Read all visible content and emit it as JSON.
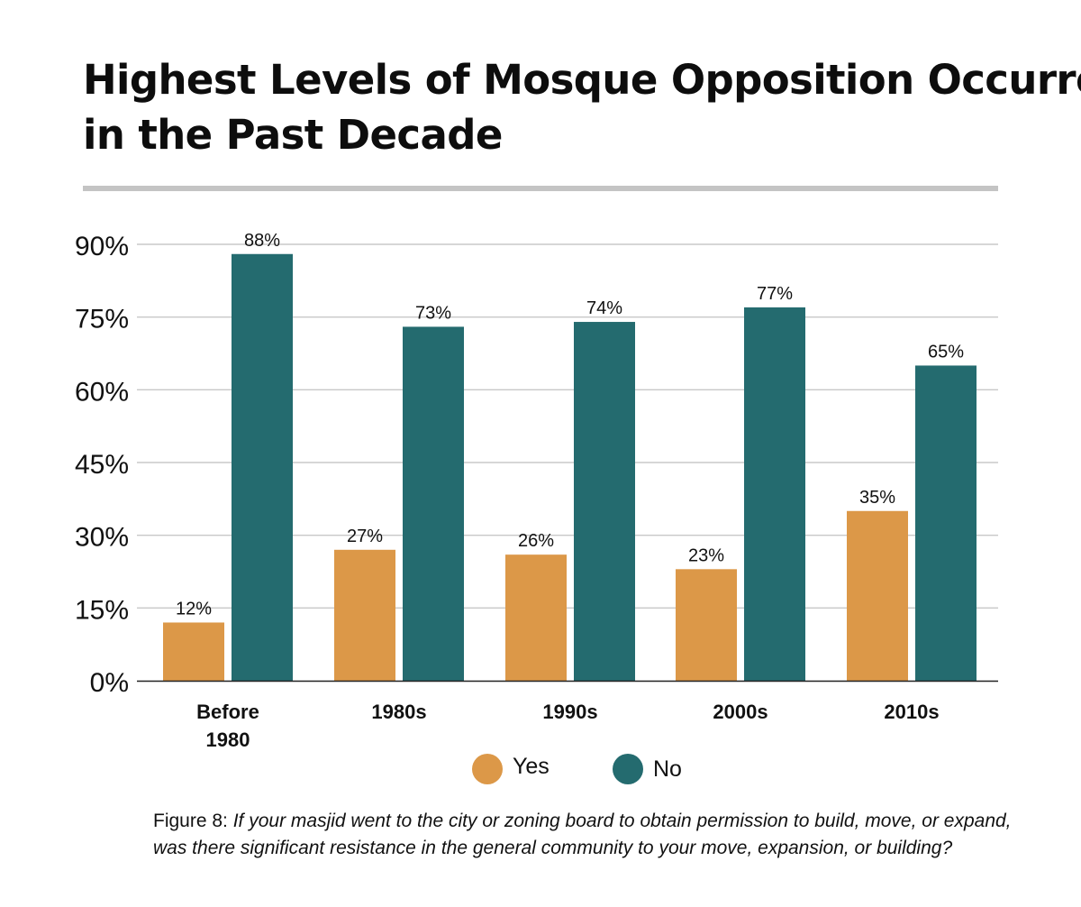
{
  "chart_data": {
    "type": "bar",
    "title": "Highest Levels of Mosque Opposition Occurred in the Past Decade",
    "title_lines": [
      "Highest Levels of Mosque Opposition Occurred",
      "in the Past Decade"
    ],
    "categories": [
      "Before 1980",
      "1980s",
      "1990s",
      "2000s",
      "2010s"
    ],
    "category_lines": [
      [
        "Before",
        "1980"
      ],
      [
        "1980s"
      ],
      [
        "1990s"
      ],
      [
        "2000s"
      ],
      [
        "2010s"
      ]
    ],
    "series": [
      {
        "name": "Yes",
        "color": "#DC9848",
        "values": [
          12,
          27,
          26,
          23,
          35
        ],
        "labels": [
          "12%",
          "27%",
          "26%",
          "23%",
          "35%"
        ]
      },
      {
        "name": "No",
        "color": "#246B6F",
        "values": [
          88,
          73,
          74,
          77,
          65
        ],
        "labels": [
          "88%",
          "73%",
          "74%",
          "77%",
          "65%"
        ]
      }
    ],
    "ylim": [
      0,
      90
    ],
    "yticks": [
      0,
      15,
      30,
      45,
      60,
      75,
      90
    ],
    "ytick_labels": [
      "0%",
      "15%",
      "30%",
      "45%",
      "60%",
      "75%",
      "90%"
    ],
    "xlabel": "",
    "ylabel": "",
    "grid": true,
    "legend_position": "bottom-center"
  },
  "caption": {
    "label": "Figure 8:",
    "text": "If your masjid went to the city or zoning board to obtain permission to build, move, or expand, was there significant resistance in the general community to your move, expansion, or building?"
  },
  "colors": {
    "gridline": "#C8C8C8",
    "axis": "#222222",
    "rule": "#C4C4C4"
  }
}
